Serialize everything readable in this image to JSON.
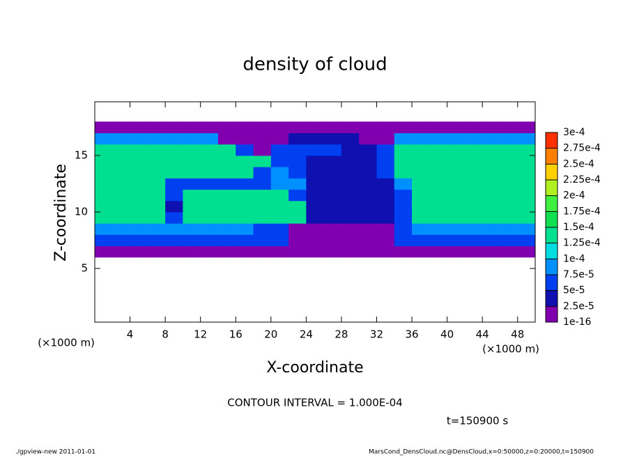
{
  "chart_data": {
    "type": "heatmap",
    "title": "density of cloud",
    "x_label": "X-coordinate",
    "y_label": "Z-coordinate",
    "x_unit": "(×1000 m)",
    "y_unit": "(×1000 m)",
    "contour_note": "CONTOUR INTERVAL = 1.000E-04",
    "time_note": "t=150900 s",
    "footer_left": "./gpview-new   2011-01-01",
    "footer_right": "MarsCond_DensCloud.nc@DensCloud,x=0:50000,z=0:20000,t=150900",
    "xlim": [
      0,
      50
    ],
    "ylim": [
      0.25,
      19.75
    ],
    "xticks": [
      4,
      8,
      12,
      16,
      20,
      24,
      28,
      32,
      36,
      40,
      44,
      48
    ],
    "yticks": [
      5,
      10,
      15
    ],
    "x": [
      1,
      3,
      5,
      7,
      9,
      11,
      13,
      15,
      17,
      19,
      21,
      23,
      25,
      27,
      29,
      31,
      33,
      35,
      37,
      39,
      41,
      43,
      45,
      47,
      49
    ],
    "y": [
      6.5,
      7.5,
      8.5,
      9.5,
      10.5,
      11.5,
      12.5,
      13.5,
      14.5,
      15.5,
      16.5,
      17.5
    ],
    "z": [
      [
        1e-05,
        1e-05,
        1e-05,
        1e-05,
        1e-05,
        1e-05,
        1e-05,
        1e-05,
        1e-05,
        1e-05,
        1e-05,
        1e-05,
        1e-05,
        1e-05,
        1e-05,
        1e-05,
        1e-05,
        1e-05,
        1e-05,
        1e-05,
        1e-05,
        1e-05,
        1e-05,
        1e-05,
        1e-05
      ],
      [
        6e-05,
        6e-05,
        6e-05,
        6e-05,
        6e-05,
        6e-05,
        6e-05,
        6e-05,
        6e-05,
        6e-05,
        6e-05,
        1e-05,
        1e-05,
        1e-05,
        1e-05,
        1e-05,
        1e-05,
        6e-05,
        6e-05,
        6e-05,
        6e-05,
        6e-05,
        6e-05,
        6e-05,
        6e-05
      ],
      [
        9e-05,
        9e-05,
        9e-05,
        9e-05,
        9e-05,
        9e-05,
        9e-05,
        9e-05,
        9e-05,
        6e-05,
        6e-05,
        1e-05,
        1e-05,
        1e-05,
        1e-05,
        1e-05,
        1e-05,
        6e-05,
        9e-05,
        9e-05,
        9e-05,
        9e-05,
        9e-05,
        9e-05,
        9e-05
      ],
      [
        0.00014,
        0.00014,
        0.00014,
        0.00014,
        6e-05,
        0.00014,
        0.00014,
        0.00014,
        0.00014,
        0.00014,
        0.00014,
        0.00014,
        3e-05,
        3e-05,
        3e-05,
        3e-05,
        3e-05,
        6e-05,
        0.00014,
        0.00014,
        0.00014,
        0.00014,
        0.00014,
        0.00014,
        0.00014
      ],
      [
        0.00014,
        0.00014,
        0.00014,
        0.00014,
        3e-05,
        0.00014,
        0.00014,
        0.00014,
        0.00014,
        0.00014,
        0.00014,
        0.00014,
        3e-05,
        3e-05,
        3e-05,
        3e-05,
        3e-05,
        6e-05,
        0.00014,
        0.00014,
        0.00014,
        0.00014,
        0.00014,
        0.00014,
        0.00014
      ],
      [
        0.00014,
        0.00014,
        0.00014,
        0.00014,
        6e-05,
        0.00014,
        0.00014,
        0.00014,
        0.00014,
        0.00014,
        0.00014,
        6e-05,
        3e-05,
        3e-05,
        3e-05,
        3e-05,
        3e-05,
        6e-05,
        0.00014,
        0.00014,
        0.00014,
        0.00014,
        0.00014,
        0.00014,
        0.00014
      ],
      [
        0.00014,
        0.00014,
        0.00014,
        0.00014,
        6e-05,
        6e-05,
        6e-05,
        6e-05,
        6e-05,
        6e-05,
        9e-05,
        9e-05,
        3e-05,
        3e-05,
        3e-05,
        3e-05,
        3e-05,
        9e-05,
        0.00014,
        0.00014,
        0.00014,
        0.00014,
        0.00014,
        0.00014,
        0.00014
      ],
      [
        0.00014,
        0.00014,
        0.00014,
        0.00014,
        0.00014,
        0.00014,
        0.00014,
        0.00014,
        0.00014,
        6e-05,
        9e-05,
        6e-05,
        3e-05,
        3e-05,
        3e-05,
        3e-05,
        6e-05,
        0.00014,
        0.00014,
        0.00014,
        0.00014,
        0.00014,
        0.00014,
        0.00014,
        0.00014
      ],
      [
        0.00014,
        0.00014,
        0.00014,
        0.00014,
        0.00014,
        0.00014,
        0.00014,
        0.00014,
        0.00014,
        0.00014,
        6e-05,
        6e-05,
        3e-05,
        3e-05,
        3e-05,
        3e-05,
        6e-05,
        0.00014,
        0.00014,
        0.00014,
        0.00014,
        0.00014,
        0.00014,
        0.00014,
        0.00014
      ],
      [
        0.00014,
        0.00014,
        0.00014,
        0.00014,
        0.00014,
        0.00014,
        0.00014,
        0.00014,
        6e-05,
        1e-05,
        6e-05,
        6e-05,
        6e-05,
        6e-05,
        3e-05,
        3e-05,
        6e-05,
        0.00014,
        0.00014,
        0.00014,
        0.00014,
        0.00014,
        0.00014,
        0.00014,
        0.00014
      ],
      [
        9e-05,
        9e-05,
        9e-05,
        9e-05,
        9e-05,
        9e-05,
        9e-05,
        1e-05,
        1e-05,
        1e-05,
        1e-05,
        3e-05,
        3e-05,
        3e-05,
        3e-05,
        1e-05,
        1e-05,
        9e-05,
        9e-05,
        9e-05,
        9e-05,
        9e-05,
        9e-05,
        9e-05,
        9e-05
      ],
      [
        1e-05,
        1e-05,
        1e-05,
        1e-05,
        1e-05,
        1e-05,
        1e-05,
        1e-05,
        1e-05,
        1e-05,
        1e-05,
        1e-05,
        1e-05,
        1e-05,
        1e-05,
        1e-05,
        1e-05,
        1e-05,
        1e-05,
        1e-05,
        1e-05,
        1e-05,
        1e-05,
        1e-05,
        1e-05
      ]
    ],
    "colorbar": {
      "levels": [
        {
          "value": 1e-16,
          "label": "1e-16"
        },
        {
          "value": 2.5e-05,
          "label": "2.5e-5"
        },
        {
          "value": 5e-05,
          "label": "5e-5"
        },
        {
          "value": 7.5e-05,
          "label": "7.5e-5"
        },
        {
          "value": 0.0001,
          "label": "1e-4"
        },
        {
          "value": 0.000125,
          "label": "1.25e-4"
        },
        {
          "value": 0.00015,
          "label": "1.5e-4"
        },
        {
          "value": 0.000175,
          "label": "1.75e-4"
        },
        {
          "value": 0.0002,
          "label": "2e-4"
        },
        {
          "value": 0.000225,
          "label": "2.25e-4"
        },
        {
          "value": 0.00025,
          "label": "2.5e-4"
        },
        {
          "value": 0.000275,
          "label": "2.75e-4"
        },
        {
          "value": 0.0003,
          "label": "3e-4"
        }
      ],
      "colors": [
        "#8000b0",
        "#1010b0",
        "#0040f0",
        "#0090ff",
        "#00dde0",
        "#00e090",
        "#10e050",
        "#40f040",
        "#b0f020",
        "#ffd000",
        "#ff8000",
        "#ff3000",
        "#ff8888"
      ]
    }
  }
}
